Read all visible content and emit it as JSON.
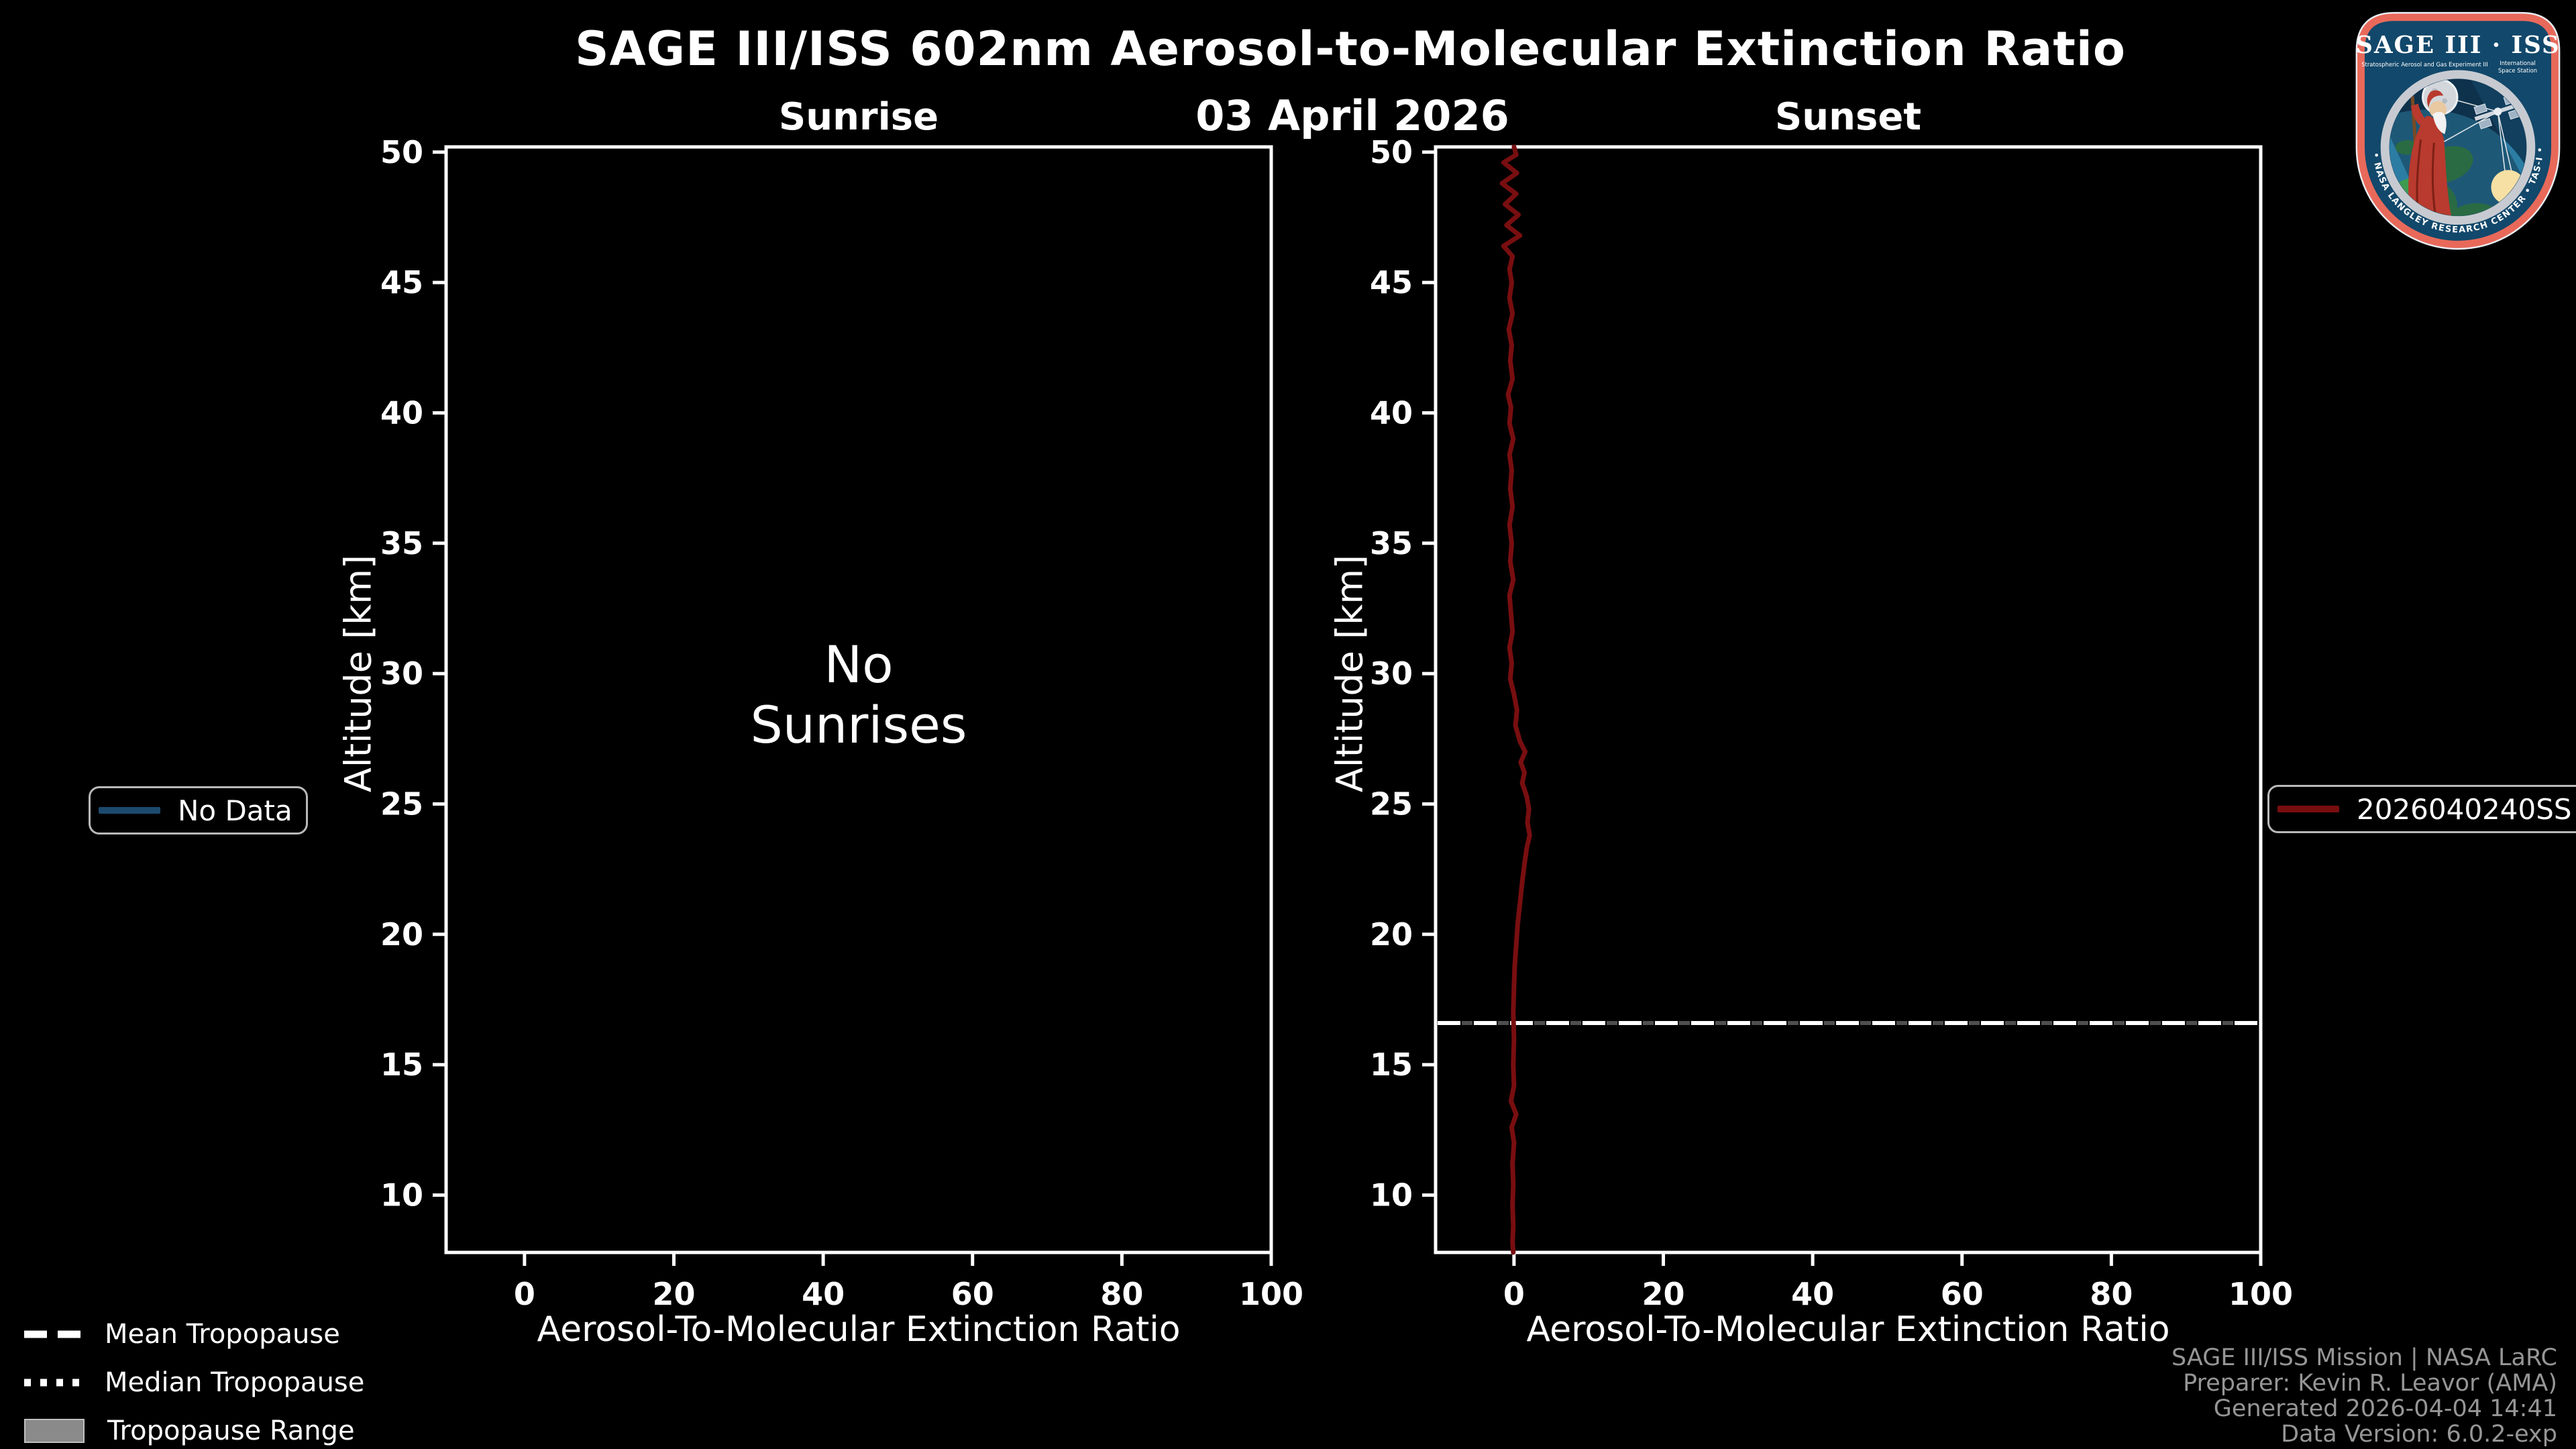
{
  "title": "SAGE III/ISS 602nm Aerosol-to-Molecular Extinction Ratio",
  "date": "03 April 2026",
  "colors": {
    "background": "#000000",
    "axis": "#ffffff",
    "no_data_swatch": "#1c4a6e",
    "sunset_line": "#780e10",
    "mean_tropopause": "#ffffff",
    "median_tropopause": "#4f4f4f",
    "range_fill": "#8a8a8a",
    "credits_text": "#969696",
    "legend_border": "#b9b9b9",
    "logo_rim": "#e8695a",
    "logo_field": "#12486b"
  },
  "legend_left": {
    "label": "No Data"
  },
  "legend_right": {
    "label": "2026040240SS"
  },
  "tropopause_legend": [
    {
      "style": "dashed",
      "label": "Mean Tropopause"
    },
    {
      "style": "dotted",
      "label": "Median Tropopause"
    },
    {
      "style": "box",
      "label": "Tropopause Range"
    }
  ],
  "credits": [
    "SAGE III/ISS Mission | NASA LaRC",
    "Preparer: Kevin R. Leavor (AMA)",
    "Generated 2026-04-04 14:41",
    "Data Version: 6.0.2-exp"
  ],
  "logo": {
    "title": "SAGE III · ISS",
    "subtitle_left": "Stratospheric Aerosol and Gas Experiment III",
    "subtitle_right_line1": "International",
    "subtitle_right_line2": "Space Station",
    "bottom_text": "BALL • NASA LANGLEY RESEARCH CENTER • TAS-I • ESA"
  },
  "chart_data": [
    {
      "type": "line",
      "title": "Sunrise",
      "xlabel": "Aerosol-To-Molecular Extinction Ratio",
      "ylabel": "Altitude [km]",
      "xlim": [
        -10.5,
        100
      ],
      "ylim": [
        7.8,
        50.2
      ],
      "xticks": [
        0,
        20,
        40,
        60,
        80,
        100
      ],
      "yticks": [
        10,
        15,
        20,
        25,
        30,
        35,
        40,
        45,
        50
      ],
      "grid": false,
      "legend_position": "outside-left",
      "no_data_lines": [
        "No",
        "Sunrises"
      ],
      "series": []
    },
    {
      "type": "line",
      "title": "Sunset",
      "xlabel": "Aerosol-To-Molecular Extinction Ratio",
      "ylabel": "Altitude [km]",
      "xlim": [
        -10.5,
        100
      ],
      "ylim": [
        7.8,
        50.2
      ],
      "xticks": [
        0,
        20,
        40,
        60,
        80,
        100
      ],
      "yticks": [
        10,
        15,
        20,
        25,
        30,
        35,
        40,
        45,
        50
      ],
      "grid": false,
      "legend_position": "outside-right",
      "mean_tropopause_km": 16.6,
      "median_tropopause_km": 16.6,
      "series": [
        {
          "name": "2026040240SS",
          "color": "#780e10",
          "points_ratio_altitude": [
            [
              0.0,
              50.2
            ],
            [
              0.3,
              49.9
            ],
            [
              -1.4,
              49.6
            ],
            [
              0.4,
              49.2
            ],
            [
              -1.6,
              48.8
            ],
            [
              0.3,
              48.4
            ],
            [
              -1.2,
              48.0
            ],
            [
              0.6,
              47.6
            ],
            [
              -1.0,
              47.2
            ],
            [
              0.8,
              46.8
            ],
            [
              -1.4,
              46.4
            ],
            [
              -0.2,
              46.0
            ],
            [
              -0.6,
              45.5
            ],
            [
              -0.3,
              45.0
            ],
            [
              -0.6,
              44.4
            ],
            [
              -0.2,
              43.8
            ],
            [
              -0.7,
              43.2
            ],
            [
              -0.3,
              42.6
            ],
            [
              -0.5,
              42.0
            ],
            [
              -0.2,
              41.3
            ],
            [
              -0.8,
              40.7
            ],
            [
              -0.4,
              40.2
            ],
            [
              -0.6,
              39.6
            ],
            [
              -0.1,
              39.0
            ],
            [
              -0.6,
              38.4
            ],
            [
              -0.3,
              37.8
            ],
            [
              -0.5,
              37.1
            ],
            [
              -0.2,
              36.4
            ],
            [
              -0.6,
              35.7
            ],
            [
              -0.3,
              35.0
            ],
            [
              -0.5,
              34.3
            ],
            [
              -0.1,
              33.6
            ],
            [
              -0.6,
              33.0
            ],
            [
              -0.4,
              32.3
            ],
            [
              -0.2,
              31.6
            ],
            [
              -0.6,
              31.0
            ],
            [
              -0.3,
              30.4
            ],
            [
              -0.5,
              29.8
            ],
            [
              0.0,
              29.2
            ],
            [
              0.4,
              28.6
            ],
            [
              0.2,
              28.0
            ],
            [
              0.8,
              27.4
            ],
            [
              1.5,
              27.0
            ],
            [
              0.9,
              26.6
            ],
            [
              1.4,
              26.2
            ],
            [
              1.1,
              25.8
            ],
            [
              1.7,
              25.3
            ],
            [
              2.0,
              24.8
            ],
            [
              1.8,
              24.3
            ],
            [
              2.1,
              23.8
            ],
            [
              1.7,
              23.3
            ],
            [
              1.4,
              22.7
            ],
            [
              1.1,
              22.0
            ],
            [
              0.8,
              21.2
            ],
            [
              0.5,
              20.4
            ],
            [
              0.3,
              19.6
            ],
            [
              0.1,
              18.8
            ],
            [
              0.0,
              18.0
            ],
            [
              -0.1,
              17.0
            ],
            [
              0.0,
              16.0
            ],
            [
              -0.1,
              15.0
            ],
            [
              0.0,
              14.2
            ],
            [
              -0.4,
              13.6
            ],
            [
              0.3,
              13.1
            ],
            [
              -0.3,
              12.6
            ],
            [
              0.0,
              12.0
            ],
            [
              -0.2,
              11.2
            ],
            [
              -0.1,
              10.4
            ],
            [
              -0.2,
              9.6
            ],
            [
              -0.1,
              8.8
            ],
            [
              -0.2,
              8.2
            ],
            [
              -0.1,
              7.8
            ]
          ]
        }
      ]
    }
  ]
}
